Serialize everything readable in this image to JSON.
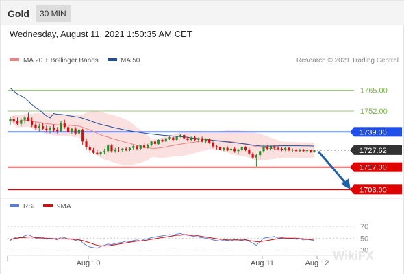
{
  "header": {
    "symbol": "Gold",
    "timeframe": "30 MIN"
  },
  "datetime": "Wednesday, August 11, 2021 1:50:35 AM CET",
  "legend": {
    "ma20": "MA 20 + Bollinger Bands",
    "ma50": "MA 50",
    "credit": "Research © 2021 Trading Central",
    "rsi": "RSI",
    "rsi_ma": "9MA"
  },
  "colors": {
    "ma20": "#f08080",
    "ma50": "#1f4e9c",
    "up": "#2e8b2e",
    "down": "#cc1111",
    "resistance": "#1f4ee8",
    "support": "#e00000",
    "arrow": "#1f5fa8",
    "band": "#fbe0e0",
    "target_line": "#7ab648",
    "rsi_line": "#5b7bd5",
    "rsi_ma": "#cc1111"
  },
  "watermark": "WikiFX",
  "chart_data": {
    "type": "candlestick",
    "x_ticks": [
      "Aug 10",
      "Aug 11",
      "Aug 12"
    ],
    "y_range": [
      1701,
      1776
    ],
    "levels": [
      {
        "value": 1765.0,
        "label": "1765.00",
        "kind": "target"
      },
      {
        "value": 1752.0,
        "label": "1752.00",
        "kind": "target"
      },
      {
        "value": 1739.0,
        "label": "1739.00",
        "kind": "resistance"
      },
      {
        "value": 1727.62,
        "label": "1727.62",
        "kind": "last"
      },
      {
        "value": 1717.0,
        "label": "1717.00",
        "kind": "support"
      },
      {
        "value": 1703.0,
        "label": "1703.00",
        "kind": "support"
      }
    ],
    "candles": [
      [
        1746.0,
        1748.5,
        1743.5,
        1747.0
      ],
      [
        1747.0,
        1749.0,
        1744.5,
        1745.5
      ],
      [
        1745.5,
        1748.0,
        1743.0,
        1744.0
      ],
      [
        1744.0,
        1747.5,
        1742.5,
        1746.5
      ],
      [
        1746.5,
        1749.0,
        1744.0,
        1748.0
      ],
      [
        1748.0,
        1751.0,
        1745.5,
        1746.0
      ],
      [
        1746.0,
        1748.0,
        1742.0,
        1743.5
      ],
      [
        1743.5,
        1745.0,
        1740.0,
        1741.5
      ],
      [
        1741.5,
        1744.0,
        1739.0,
        1742.5
      ],
      [
        1742.5,
        1744.5,
        1740.5,
        1741.0
      ],
      [
        1741.0,
        1743.0,
        1738.5,
        1740.0
      ],
      [
        1740.0,
        1742.5,
        1738.0,
        1741.5
      ],
      [
        1741.5,
        1743.5,
        1739.0,
        1740.5
      ],
      [
        1740.5,
        1742.0,
        1738.0,
        1739.5
      ],
      [
        1739.5,
        1746.0,
        1739.0,
        1744.5
      ],
      [
        1744.5,
        1746.5,
        1741.0,
        1742.0
      ],
      [
        1742.0,
        1743.5,
        1738.0,
        1739.0
      ],
      [
        1739.0,
        1741.5,
        1737.5,
        1741.0
      ],
      [
        1741.0,
        1742.0,
        1737.0,
        1738.0
      ],
      [
        1738.0,
        1741.5,
        1737.0,
        1740.5
      ],
      [
        1740.5,
        1741.0,
        1731.0,
        1733.0
      ],
      [
        1733.0,
        1735.0,
        1728.0,
        1729.5
      ],
      [
        1729.5,
        1731.0,
        1726.0,
        1727.5
      ],
      [
        1727.5,
        1729.0,
        1725.5,
        1726.0
      ],
      [
        1726.0,
        1728.0,
        1724.5,
        1725.0
      ],
      [
        1725.0,
        1727.0,
        1723.5,
        1726.5
      ],
      [
        1726.5,
        1728.5,
        1725.0,
        1727.0
      ],
      [
        1727.0,
        1731.5,
        1726.0,
        1730.5
      ],
      [
        1730.5,
        1731.5,
        1726.0,
        1727.0
      ],
      [
        1727.0,
        1729.0,
        1726.0,
        1728.0
      ],
      [
        1728.0,
        1729.5,
        1726.5,
        1727.5
      ],
      [
        1727.5,
        1729.0,
        1726.5,
        1728.5
      ],
      [
        1728.5,
        1729.5,
        1727.0,
        1728.0
      ],
      [
        1728.0,
        1729.5,
        1727.0,
        1729.0
      ],
      [
        1729.0,
        1731.0,
        1728.0,
        1730.0
      ],
      [
        1730.0,
        1731.0,
        1727.5,
        1728.5
      ],
      [
        1728.5,
        1731.0,
        1728.0,
        1730.5
      ],
      [
        1730.5,
        1732.0,
        1728.5,
        1729.0
      ],
      [
        1729.0,
        1731.5,
        1728.5,
        1731.0
      ],
      [
        1731.0,
        1733.5,
        1730.0,
        1733.0
      ],
      [
        1733.0,
        1734.0,
        1730.5,
        1731.5
      ],
      [
        1731.5,
        1734.5,
        1731.0,
        1734.0
      ],
      [
        1734.0,
        1735.0,
        1732.5,
        1733.0
      ],
      [
        1733.0,
        1735.5,
        1732.5,
        1735.0
      ],
      [
        1735.0,
        1736.5,
        1734.0,
        1735.5
      ],
      [
        1735.5,
        1736.0,
        1733.0,
        1734.0
      ],
      [
        1734.0,
        1736.5,
        1733.5,
        1736.0
      ],
      [
        1736.0,
        1737.5,
        1735.5,
        1737.0
      ],
      [
        1737.0,
        1737.5,
        1734.5,
        1735.0
      ],
      [
        1735.0,
        1736.0,
        1733.0,
        1734.0
      ],
      [
        1734.0,
        1736.0,
        1733.5,
        1735.5
      ],
      [
        1735.5,
        1736.5,
        1733.5,
        1734.0
      ],
      [
        1734.0,
        1735.5,
        1732.5,
        1735.0
      ],
      [
        1735.0,
        1736.0,
        1732.5,
        1733.0
      ],
      [
        1733.0,
        1735.0,
        1732.0,
        1734.5
      ],
      [
        1734.5,
        1735.0,
        1731.5,
        1732.0
      ],
      [
        1732.0,
        1733.0,
        1729.0,
        1730.0
      ],
      [
        1730.0,
        1731.0,
        1728.0,
        1729.5
      ],
      [
        1729.5,
        1730.5,
        1727.5,
        1728.0
      ],
      [
        1728.0,
        1729.5,
        1727.0,
        1729.0
      ],
      [
        1729.0,
        1730.0,
        1727.0,
        1727.5
      ],
      [
        1727.5,
        1729.0,
        1726.5,
        1728.5
      ],
      [
        1728.5,
        1729.5,
        1726.0,
        1727.0
      ],
      [
        1727.0,
        1728.5,
        1725.5,
        1728.0
      ],
      [
        1728.0,
        1730.0,
        1727.0,
        1729.5
      ],
      [
        1729.5,
        1730.0,
        1727.0,
        1728.0
      ],
      [
        1728.0,
        1729.0,
        1724.5,
        1725.5
      ],
      [
        1725.5,
        1726.5,
        1722.0,
        1723.0
      ],
      [
        1723.0,
        1725.0,
        1717.0,
        1724.5
      ],
      [
        1724.5,
        1728.0,
        1722.0,
        1727.0
      ],
      [
        1727.0,
        1730.5,
        1726.0,
        1729.5
      ],
      [
        1729.5,
        1731.0,
        1727.5,
        1728.5
      ],
      [
        1728.5,
        1730.5,
        1727.5,
        1730.0
      ],
      [
        1730.0,
        1730.5,
        1728.0,
        1729.0
      ],
      [
        1729.0,
        1730.0,
        1727.5,
        1728.5
      ],
      [
        1728.5,
        1729.5,
        1727.0,
        1728.0
      ],
      [
        1728.0,
        1729.5,
        1727.0,
        1729.0
      ],
      [
        1729.0,
        1729.5,
        1727.0,
        1727.5
      ],
      [
        1727.5,
        1728.5,
        1726.5,
        1728.0
      ],
      [
        1728.0,
        1728.5,
        1726.5,
        1727.0
      ],
      [
        1727.0,
        1728.5,
        1726.5,
        1728.0
      ],
      [
        1728.0,
        1728.5,
        1726.5,
        1727.0
      ],
      [
        1727.0,
        1728.0,
        1726.0,
        1727.5
      ],
      [
        1727.5,
        1728.0,
        1726.0,
        1726.5
      ],
      [
        1726.5,
        1728.0,
        1726.0,
        1727.62
      ]
    ],
    "rsi_axis": [
      70,
      50,
      30
    ],
    "rsi": [
      46,
      50,
      52,
      51,
      54,
      56,
      53,
      50,
      49,
      51,
      48,
      50,
      49,
      47,
      52,
      51,
      48,
      49,
      46,
      48,
      42,
      38,
      35,
      34,
      33,
      36,
      38,
      40,
      39,
      41,
      42,
      43,
      45,
      44,
      46,
      47,
      45,
      48,
      49,
      51,
      52,
      53,
      54,
      55,
      56,
      55,
      57,
      58,
      56,
      55,
      54,
      53,
      52,
      51,
      50,
      49,
      47,
      46,
      45,
      47,
      46,
      45,
      48,
      47,
      46,
      48,
      45,
      41,
      38,
      44,
      50,
      51,
      52,
      53,
      50,
      51,
      50,
      49,
      50,
      48,
      49,
      47,
      48,
      47,
      46
    ],
    "rsi_ma": [
      48,
      49,
      50,
      51,
      51,
      52,
      52,
      51,
      51,
      50,
      50,
      49,
      49,
      49,
      49,
      49,
      49,
      48,
      48,
      47,
      46,
      44,
      42,
      40,
      38,
      37,
      37,
      37,
      38,
      39,
      40,
      41,
      42,
      43,
      44,
      45,
      45,
      46,
      47,
      48,
      49,
      50,
      51,
      52,
      53,
      54,
      55,
      55,
      56,
      56,
      55,
      55,
      54,
      53,
      52,
      51,
      50,
      49,
      48,
      48,
      47,
      47,
      47,
      47,
      47,
      47,
      46,
      45,
      44,
      44,
      45,
      46,
      47,
      48,
      49,
      50,
      50,
      50,
      50,
      50,
      49,
      49,
      48,
      48,
      48
    ]
  }
}
